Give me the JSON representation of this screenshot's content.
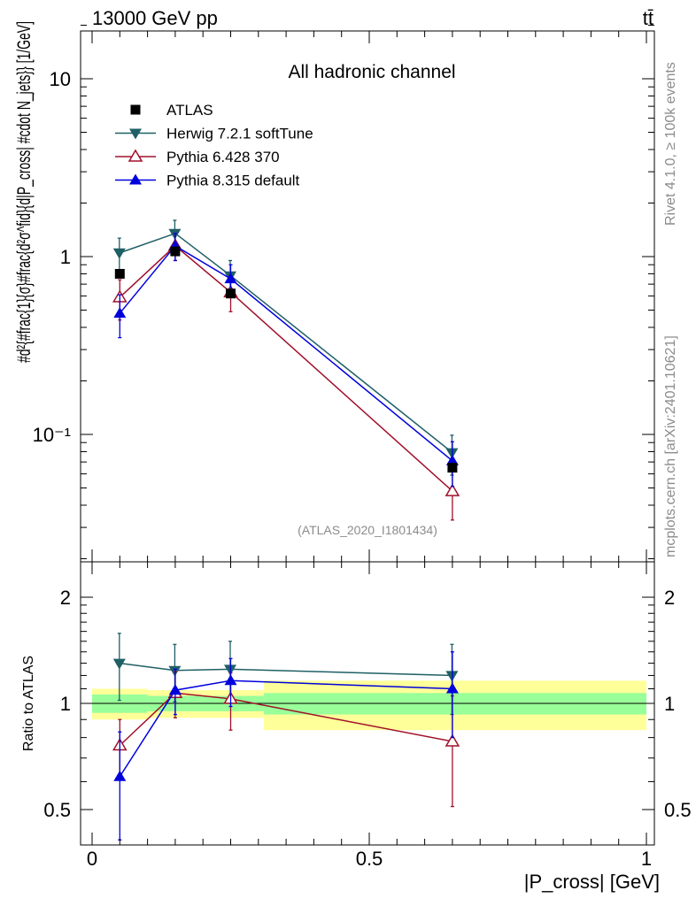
{
  "header": {
    "energy_label": "13000 GeV pp",
    "process_label": "tt̄",
    "rivet_label": "Rivet 4.1.0, ≥ 100k events",
    "mcplots_label": "mcplots.cern.ch [arXiv:2401.10621]",
    "analysis_label": "(ATLAS_2020_I1801434)"
  },
  "colors": {
    "atlas": "#000000",
    "herwig": "#1f5f66",
    "pythia6": "#a0102a",
    "pythia8": "#0000dd",
    "band_inner": "#99ff99",
    "band_outer": "#ffff99"
  },
  "chart_data": [
    {
      "type": "line",
      "title": "All hadronic channel",
      "xlabel": "|P_cross| [GeV]",
      "ylabel": "#d^{2}{#frac{1}{#sigma}#frac{d^{2}#sigma^{fid}}{d|P_cross| #cdot N_jets}} [1/GeV]",
      "ylabel_display": "#d²{#frac{1}{σ}#frac{d²σ^fid}{d|P_cross| #cdot N_jets}} [1/GeV]",
      "yscale": "log",
      "xlim": [
        0,
        1
      ],
      "ylim": [
        0.02,
        20
      ],
      "y_ticks": [
        {
          "value": 0.1,
          "label": "10⁻¹"
        },
        {
          "value": 1,
          "label": "1"
        },
        {
          "value": 10,
          "label": "10"
        }
      ],
      "x": [
        0.05,
        0.15,
        0.25,
        0.65
      ],
      "series": [
        {
          "name": "ATLAS",
          "color_key": "atlas",
          "marker": "square",
          "values": [
            0.8,
            1.07,
            0.62,
            0.065
          ],
          "err": [
            0,
            0,
            0,
            0
          ]
        },
        {
          "name": "Herwig 7.2.1 softTune",
          "color_key": "herwig",
          "marker": "triangle-down",
          "values": [
            1.05,
            1.35,
            0.78,
            0.079
          ],
          "err": [
            0.22,
            0.25,
            0.17,
            0.02
          ]
        },
        {
          "name": "Pythia 6.428 370",
          "color_key": "pythia6",
          "marker": "triangle-up-open",
          "values": [
            0.59,
            1.15,
            0.63,
            0.048
          ],
          "err": [
            0.15,
            0.2,
            0.14,
            0.015
          ]
        },
        {
          "name": "Pythia 8.315 default",
          "color_key": "pythia8",
          "marker": "triangle-up",
          "values": [
            0.48,
            1.15,
            0.75,
            0.071
          ],
          "err": [
            0.13,
            0.2,
            0.15,
            0.02
          ]
        }
      ]
    },
    {
      "type": "line",
      "title": "",
      "xlabel": "|P_cross| [GeV]",
      "ylabel": "Ratio to ATLAS",
      "xlim": [
        0,
        1
      ],
      "ylim": [
        0.42,
        2.35
      ],
      "yscale": "log",
      "y_ticks": [
        {
          "value": 0.5,
          "label": "0.5"
        },
        {
          "value": 1,
          "label": "1"
        },
        {
          "value": 2,
          "label": "2"
        }
      ],
      "x_ticks": [
        {
          "value": 0,
          "label": "0"
        },
        {
          "value": 0.5,
          "label": "0.5"
        },
        {
          "value": 1,
          "label": "1"
        }
      ],
      "x": [
        0.05,
        0.15,
        0.25,
        0.65
      ],
      "series": [
        {
          "name": "Herwig 7.2.1 softTune",
          "color_key": "herwig",
          "marker": "triangle-down",
          "values": [
            1.3,
            1.24,
            1.25,
            1.2
          ],
          "err": [
            0.28,
            0.23,
            0.25,
            0.27
          ]
        },
        {
          "name": "Pythia 6.428 370",
          "color_key": "pythia6",
          "marker": "triangle-up-open",
          "values": [
            0.76,
            1.07,
            1.03,
            0.78
          ],
          "err": [
            0.14,
            0.16,
            0.19,
            0.27
          ]
        },
        {
          "name": "Pythia 8.315 default",
          "color_key": "pythia8",
          "marker": "triangle-up",
          "values": [
            0.62,
            1.09,
            1.16,
            1.1
          ],
          "err": [
            0.21,
            0.16,
            0.18,
            0.3
          ]
        }
      ],
      "bands": [
        {
          "x0": 0.0,
          "x1": 0.1,
          "inner": [
            0.94,
            1.06
          ],
          "outer": [
            0.9,
            1.1
          ]
        },
        {
          "x0": 0.1,
          "x1": 0.31,
          "inner": [
            0.95,
            1.05
          ],
          "outer": [
            0.91,
            1.09
          ]
        },
        {
          "x0": 0.31,
          "x1": 1.0,
          "inner": [
            0.93,
            1.07
          ],
          "outer": [
            0.84,
            1.16
          ]
        }
      ]
    }
  ]
}
